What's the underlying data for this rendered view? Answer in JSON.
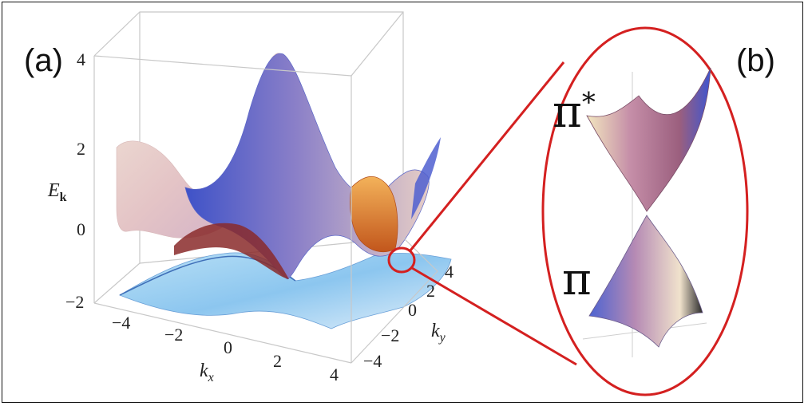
{
  "panels": {
    "a": "(a)",
    "b": "(b)"
  },
  "energy_axis": {
    "label_main": "E",
    "label_sub": "k",
    "ticks": [
      "4",
      "2",
      "0",
      "−2"
    ]
  },
  "kx_axis": {
    "label_main": "k",
    "label_sub": "x",
    "ticks": [
      "−4",
      "−2",
      "0",
      "2",
      "4"
    ]
  },
  "ky_axis": {
    "label_main": "k",
    "label_sub": "y",
    "ticks": [
      "4",
      "2",
      "0",
      "−2",
      "−4"
    ]
  },
  "bands": {
    "upper": "π",
    "upper_sup": "*",
    "lower": "π"
  },
  "colors": {
    "zoom_ring": "#d42020",
    "surface_blue": "#4a5fd0",
    "surface_pink": "#e8c8c4",
    "surface_orange": "#e07a2a",
    "surface_lightblue": "#9fd0f0",
    "box": "#c8c8c8"
  }
}
